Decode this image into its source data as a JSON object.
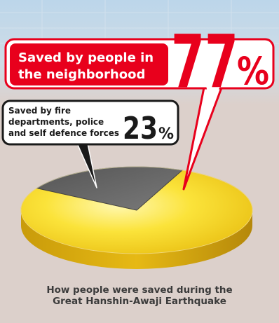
{
  "chart_data": {
    "type": "pie",
    "categories": [
      "Saved by people in the neighborhood",
      "Saved by fire departments, police and self defence forces"
    ],
    "values": [
      77,
      23
    ],
    "colors": {
      "neighborhood": "#f3cf16",
      "agencies": "#5e5e5e",
      "accent": "#e8001c",
      "background": "#dcd0cb"
    },
    "callouts": [
      {
        "label_lines": [
          "Saved by people in",
          "the neighborhood"
        ],
        "value": "77",
        "unit": "%"
      },
      {
        "label_lines": [
          "Saved by fire",
          "departments, police",
          "and self defence forces"
        ],
        "value": "23",
        "unit": "%"
      }
    ],
    "caption_lines": [
      "How people were saved during the",
      "Great Hanshin-Awaji Earthquake"
    ]
  }
}
